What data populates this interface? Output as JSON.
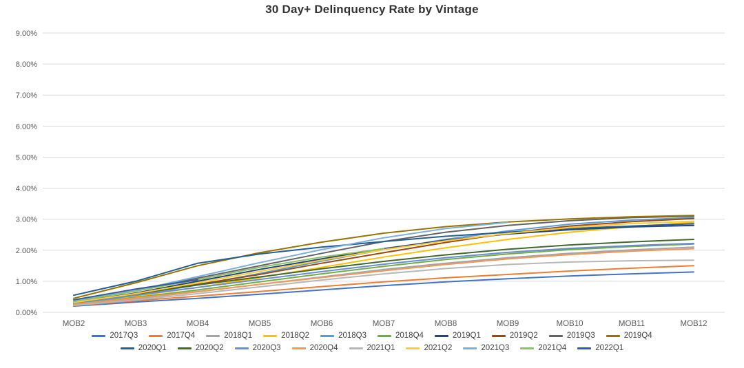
{
  "chart": {
    "title": "30 Day+ Delinquency Rate by Vintage"
  },
  "chart_data": {
    "type": "line",
    "title": "30 Day+ Delinquency Rate by Vintage",
    "xlabel": "",
    "ylabel": "",
    "ylim": [
      0,
      9
    ],
    "ytick_step": 1,
    "ytick_format": "0.00%",
    "grid": true,
    "legend_position": "bottom",
    "legend_rows": [
      10,
      9
    ],
    "categories": [
      "MOB2",
      "MOB3",
      "MOB4",
      "MOB5",
      "MOB6",
      "MOB7",
      "MOB8",
      "MOB9",
      "MOB10",
      "MOB11",
      "MOB12"
    ],
    "series": [
      {
        "name": "2017Q3",
        "color": "#4472C4",
        "values": [
          0.2,
          0.33,
          0.45,
          0.58,
          0.72,
          0.86,
          0.98,
          1.08,
          1.17,
          1.24,
          1.3
        ]
      },
      {
        "name": "2017Q4",
        "color": "#ED7D31",
        "values": [
          0.22,
          0.37,
          0.52,
          0.67,
          0.83,
          0.98,
          1.11,
          1.22,
          1.33,
          1.42,
          1.5
        ]
      },
      {
        "name": "2018Q1",
        "color": "#A5A5A5",
        "values": [
          0.24,
          0.44,
          0.66,
          0.9,
          1.14,
          1.38,
          1.58,
          1.76,
          1.9,
          2.01,
          2.1
        ]
      },
      {
        "name": "2018Q2",
        "color": "#FFC000",
        "values": [
          0.28,
          0.52,
          0.8,
          1.12,
          1.45,
          1.78,
          2.08,
          2.35,
          2.58,
          2.76,
          2.9
        ]
      },
      {
        "name": "2018Q3",
        "color": "#5B9BD5",
        "values": [
          0.28,
          0.55,
          0.88,
          1.25,
          1.65,
          2.02,
          2.35,
          2.62,
          2.84,
          2.97,
          3.05
        ]
      },
      {
        "name": "2018Q4",
        "color": "#70AD47",
        "values": [
          0.26,
          0.48,
          0.72,
          0.98,
          1.24,
          1.48,
          1.7,
          1.88,
          2.02,
          2.12,
          2.2
        ]
      },
      {
        "name": "2019Q1",
        "color": "#264478",
        "values": [
          0.32,
          0.62,
          1.0,
          1.38,
          1.72,
          2.05,
          2.32,
          2.52,
          2.66,
          2.75,
          2.8
        ]
      },
      {
        "name": "2019Q2",
        "color": "#9E480E",
        "values": [
          0.3,
          0.58,
          0.9,
          1.22,
          1.58,
          1.92,
          2.25,
          2.55,
          2.78,
          2.92,
          3.02
        ]
      },
      {
        "name": "2019Q3",
        "color": "#636363",
        "values": [
          0.35,
          0.7,
          1.1,
          1.5,
          1.9,
          2.28,
          2.58,
          2.8,
          2.95,
          3.05,
          3.1
        ]
      },
      {
        "name": "2019Q4",
        "color": "#997300",
        "values": [
          0.45,
          0.95,
          1.5,
          1.92,
          2.26,
          2.55,
          2.76,
          2.91,
          3.01,
          3.08,
          3.12
        ]
      },
      {
        "name": "2020Q1",
        "color": "#255E91",
        "values": [
          0.55,
          1.0,
          1.58,
          1.88,
          2.1,
          2.28,
          2.45,
          2.58,
          2.7,
          2.78,
          2.85
        ]
      },
      {
        "name": "2020Q2",
        "color": "#43682B",
        "values": [
          0.33,
          0.6,
          0.88,
          1.14,
          1.4,
          1.64,
          1.85,
          2.03,
          2.17,
          2.27,
          2.35
        ]
      },
      {
        "name": "2020Q3",
        "color": "#698ED0",
        "values": [
          0.3,
          0.55,
          0.8,
          1.06,
          1.31,
          1.55,
          1.76,
          1.93,
          2.06,
          2.15,
          2.22
        ]
      },
      {
        "name": "2020Q4",
        "color": "#F1975A",
        "values": [
          0.26,
          0.46,
          0.67,
          0.9,
          1.12,
          1.34,
          1.54,
          1.72,
          1.86,
          1.97,
          2.05
        ]
      },
      {
        "name": "2021Q1",
        "color": "#B7B7B7",
        "values": [
          0.22,
          0.4,
          0.6,
          0.82,
          1.04,
          1.24,
          1.41,
          1.54,
          1.62,
          1.66,
          1.68
        ]
      },
      {
        "name": "2021Q2",
        "color": "#FFCD33",
        "values": [
          0.32,
          0.6,
          0.95,
          1.32,
          1.68,
          2.02,
          2.3,
          2.54,
          2.73,
          2.86,
          2.93
        ]
      },
      {
        "name": "2021Q3",
        "color": "#7CAFDD",
        "values": [
          0.35,
          0.7,
          1.15,
          1.6,
          2.02,
          2.4,
          2.7,
          2.9,
          null,
          null,
          null
        ]
      },
      {
        "name": "2021Q4",
        "color": "#8CC168",
        "values": [
          0.35,
          0.68,
          1.05,
          1.45,
          1.78,
          2.05,
          null,
          null,
          null,
          null,
          null
        ]
      },
      {
        "name": "2022Q1",
        "color": "#335AA1",
        "values": [
          0.4,
          0.75,
          1.05,
          null,
          null,
          null,
          null,
          null,
          null,
          null,
          null
        ]
      }
    ]
  }
}
